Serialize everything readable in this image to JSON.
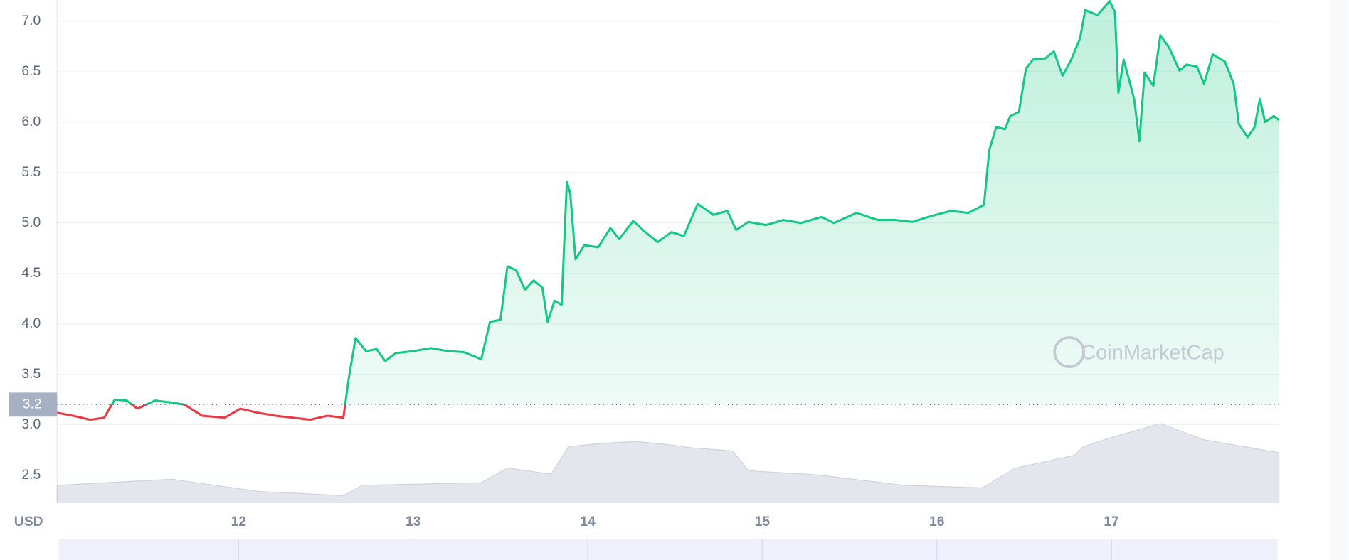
{
  "chart_data": {
    "type": "line",
    "currency_label": "USD",
    "watermark": "CoinMarketCap",
    "x": [
      10.96,
      11.05,
      11.15,
      11.23,
      11.29,
      11.36,
      11.42,
      11.52,
      11.62,
      11.69,
      11.79,
      11.92,
      12.01,
      12.11,
      12.21,
      12.31,
      12.41,
      12.51,
      12.6,
      12.63,
      12.67,
      12.73,
      12.79,
      12.84,
      12.9,
      13.0,
      13.1,
      13.2,
      13.29,
      13.39,
      13.44,
      13.5,
      13.54,
      13.59,
      13.64,
      13.69,
      13.74,
      13.77,
      13.81,
      13.85,
      13.88,
      13.9,
      13.93,
      13.98,
      14.06,
      14.13,
      14.18,
      14.26,
      14.33,
      14.4,
      14.48,
      14.55,
      14.63,
      14.72,
      14.8,
      14.85,
      14.92,
      15.02,
      15.12,
      15.22,
      15.34,
      15.41,
      15.54,
      15.66,
      15.76,
      15.86,
      15.95,
      16.08,
      16.18,
      16.27,
      16.3,
      16.34,
      16.39,
      16.42,
      16.47,
      16.51,
      16.55,
      16.62,
      16.67,
      16.72,
      16.77,
      16.82,
      16.85,
      16.92,
      16.96,
      16.99,
      17.02,
      17.04,
      17.07,
      17.13,
      17.16,
      17.19,
      17.24,
      17.28,
      17.33,
      17.39,
      17.43,
      17.49,
      17.53,
      17.58,
      17.65,
      17.7,
      17.73,
      17.78,
      17.82,
      17.85,
      17.88,
      17.93,
      17.96
    ],
    "values": [
      3.12,
      3.09,
      3.05,
      3.07,
      3.25,
      3.24,
      3.16,
      3.24,
      3.22,
      3.2,
      3.09,
      3.07,
      3.16,
      3.12,
      3.09,
      3.07,
      3.05,
      3.09,
      3.07,
      3.45,
      3.86,
      3.73,
      3.75,
      3.63,
      3.71,
      3.73,
      3.76,
      3.73,
      3.72,
      3.65,
      4.02,
      4.04,
      4.57,
      4.53,
      4.34,
      4.43,
      4.36,
      4.02,
      4.23,
      4.19,
      5.41,
      5.29,
      4.64,
      4.78,
      4.76,
      4.95,
      4.84,
      5.02,
      4.91,
      4.81,
      4.91,
      4.87,
      5.19,
      5.08,
      5.12,
      4.93,
      5.01,
      4.98,
      5.03,
      5.0,
      5.06,
      5.0,
      5.1,
      5.03,
      5.03,
      5.01,
      5.06,
      5.12,
      5.1,
      5.18,
      5.72,
      5.95,
      5.93,
      6.06,
      6.1,
      6.53,
      6.62,
      6.63,
      6.7,
      6.46,
      6.62,
      6.83,
      7.11,
      7.06,
      7.14,
      7.2,
      7.09,
      6.29,
      6.62,
      6.23,
      5.81,
      6.49,
      6.36,
      6.86,
      6.74,
      6.51,
      6.57,
      6.55,
      6.38,
      6.67,
      6.6,
      6.38,
      5.98,
      5.85,
      5.95,
      6.23,
      6.0,
      6.06,
      6.02
    ],
    "reference_value": 3.2,
    "up_color": "#16c784",
    "down_color": "#ea3943",
    "volume": {
      "x": [
        10.96,
        11.62,
        12.11,
        12.6,
        12.71,
        13.39,
        13.54,
        13.79,
        13.89,
        14.09,
        14.28,
        14.48,
        14.58,
        14.83,
        14.92,
        15.32,
        15.81,
        16.26,
        16.45,
        16.79,
        16.84,
        16.99,
        17.28,
        17.53,
        17.96
      ],
      "values": [
        20,
        27,
        13,
        8,
        20,
        23,
        40,
        33,
        65,
        69,
        71,
        67,
        64,
        60,
        37,
        32,
        20,
        17,
        40,
        55,
        65,
        75,
        92,
        73,
        58
      ]
    },
    "xlim": [
      10.96,
      17.96
    ],
    "xticks": [
      12,
      13,
      14,
      15,
      16,
      17
    ],
    "ylim": [
      2.23,
      7.21
    ],
    "yticks": [
      2.5,
      {
        "value": 3,
        "label": "3.0"
      },
      3.5,
      {
        "value": 4,
        "label": "4.0"
      },
      4.5,
      {
        "value": 5,
        "label": "5.0"
      },
      5.5,
      {
        "value": 6,
        "label": "6.0"
      },
      6.5,
      {
        "value": 7,
        "label": "7.0"
      }
    ],
    "grid": true
  }
}
